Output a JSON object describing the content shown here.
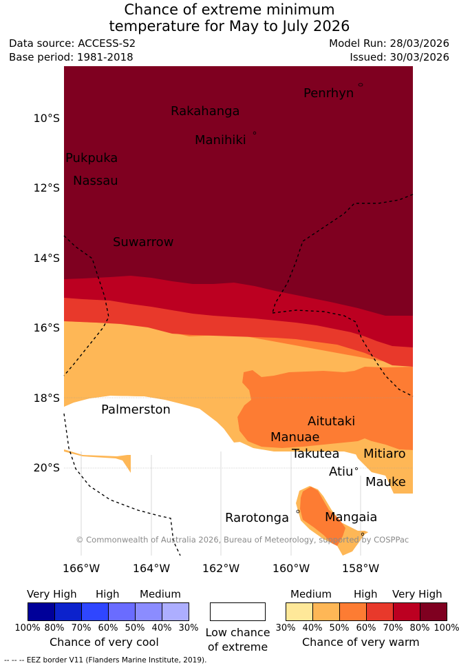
{
  "header": {
    "title_line1": "Chance of extreme minimum",
    "title_line2": "temperature for May to July 2026",
    "data_source": "Data source: ACCESS-S2",
    "base_period": "Base period: 1981-2018",
    "model_run": "Model Run: 28/03/2026",
    "issued": "Issued: 30/03/2026"
  },
  "map": {
    "lat_labels": [
      "10°S",
      "12°S",
      "14°S",
      "16°S",
      "18°S",
      "20°S"
    ],
    "lon_labels": [
      "166°W",
      "164°W",
      "162°W",
      "160°W",
      "158°W"
    ],
    "places": {
      "penrhyn": "Penrhyn",
      "rakahanga": "Rakahanga",
      "manihiki": "Manihiki",
      "pukapuka": "Pukpuka",
      "nassau": "Nassau",
      "suwarrow": "Suwarrow",
      "palmerston": "Palmerston",
      "aitutaki": "Aitutaki",
      "manuae": "Manuae",
      "takutea": "Takutea",
      "mitiaro": "Mitiaro",
      "atiu": "Atiu",
      "mauke": "Mauke",
      "rarotonga": "Rarotonga",
      "mangaia": "Mangaia"
    },
    "copyright": "© Commonwealth of Australia 2026, Bureau of Meteorology, supported by COSPPac",
    "colors": {
      "warm_100": "#7f0020",
      "warm_80": "#bc0021",
      "warm_70": "#e8392b",
      "warm_60": "#fd7c33",
      "warm_50": "#feb756",
      "warm_40": "#fee899",
      "neutral": "#ffffff"
    }
  },
  "legend": {
    "cool": {
      "captions": [
        "Very High",
        "High",
        "Medium"
      ],
      "ticks": [
        "100%",
        "80%",
        "70%",
        "60%",
        "50%",
        "40%",
        "30%"
      ],
      "title": "Chance of very cool",
      "colors": [
        "#000099",
        "#0c22cc",
        "#2f46ff",
        "#6a6cff",
        "#8b8cff",
        "#adaeff"
      ]
    },
    "neutral": {
      "title_line1": "Low chance",
      "title_line2": "of extreme",
      "color": "#ffffff"
    },
    "warm": {
      "captions": [
        "Medium",
        "High",
        "Very High"
      ],
      "ticks": [
        "30%",
        "40%",
        "50%",
        "60%",
        "70%",
        "80%",
        "100%"
      ],
      "title": "Chance of very warm",
      "colors": [
        "#fee899",
        "#feb756",
        "#fd7c33",
        "#e8392b",
        "#bc0021",
        "#7f0020"
      ]
    }
  },
  "footer": {
    "eez_note": "-- -- -- EEZ border V11 (Flanders Marine Institute, 2019)."
  }
}
